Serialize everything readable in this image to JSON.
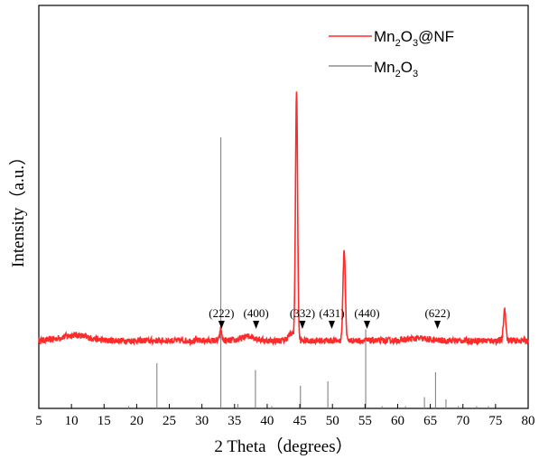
{
  "chart_data": {
    "type": "line",
    "xlabel": "2 Theta（degrees）",
    "ylabel": "Intensity（a.u.）",
    "xlim": [
      5,
      80
    ],
    "x_ticks": [
      "5",
      "10",
      "15",
      "20",
      "25",
      "30",
      "35",
      "40",
      "45",
      "50",
      "55",
      "60",
      "65",
      "70",
      "75",
      "80"
    ],
    "y_ticks": "none",
    "grid": false,
    "legend_position": "top-right",
    "series": [
      {
        "name": "Mn2O3@NF",
        "legend_main": "Mn",
        "legend_sub1": "2",
        "legend_mid": "O",
        "legend_sub2": "3",
        "legend_tail": "@NF",
        "color": "#ff2a2a",
        "kind": "line",
        "baseline": 0.3,
        "peaks": [
          {
            "x": 10.5,
            "h": 0.025,
            "w": 2.0
          },
          {
            "x": 32.9,
            "h": 0.05,
            "w": 0.15
          },
          {
            "x": 37.2,
            "h": 0.02,
            "w": 1.0
          },
          {
            "x": 43.7,
            "h": 0.03,
            "w": 0.5
          },
          {
            "x": 44.5,
            "h": 1.1,
            "w": 0.16
          },
          {
            "x": 51.8,
            "h": 0.4,
            "w": 0.18
          },
          {
            "x": 63.0,
            "h": 0.01,
            "w": 1.5
          },
          {
            "x": 76.4,
            "h": 0.14,
            "w": 0.18
          }
        ]
      },
      {
        "name": "Mn2O3",
        "legend_main": "Mn",
        "legend_sub1": "2",
        "legend_mid": "O",
        "legend_sub2": "3",
        "legend_tail": "",
        "color": "#777777",
        "kind": "sticks",
        "sticks": [
          {
            "x": 18.8,
            "h": 0.01
          },
          {
            "x": 23.1,
            "h": 0.2
          },
          {
            "x": 32.9,
            "h": 1.2
          },
          {
            "x": 35.5,
            "h": 0.02
          },
          {
            "x": 38.2,
            "h": 0.17
          },
          {
            "x": 40.7,
            "h": 0.01
          },
          {
            "x": 45.1,
            "h": 0.1
          },
          {
            "x": 49.3,
            "h": 0.12
          },
          {
            "x": 55.1,
            "h": 0.35
          },
          {
            "x": 57.6,
            "h": 0.01
          },
          {
            "x": 61.2,
            "h": 0.01
          },
          {
            "x": 64.1,
            "h": 0.05
          },
          {
            "x": 65.8,
            "h": 0.16
          },
          {
            "x": 67.4,
            "h": 0.04
          },
          {
            "x": 69.3,
            "h": 0.01
          },
          {
            "x": 72.1,
            "h": 0.01
          },
          {
            "x": 73.9,
            "h": 0.01
          }
        ]
      }
    ],
    "annotations": [
      {
        "label": "(222)",
        "x": 33.0
      },
      {
        "label": "(400)",
        "x": 38.3
      },
      {
        "label": "(332)",
        "x": 45.4
      },
      {
        "label": "(431)",
        "x": 49.9
      },
      {
        "label": "(440)",
        "x": 55.3
      },
      {
        "label": "(622)",
        "x": 66.1
      }
    ]
  }
}
